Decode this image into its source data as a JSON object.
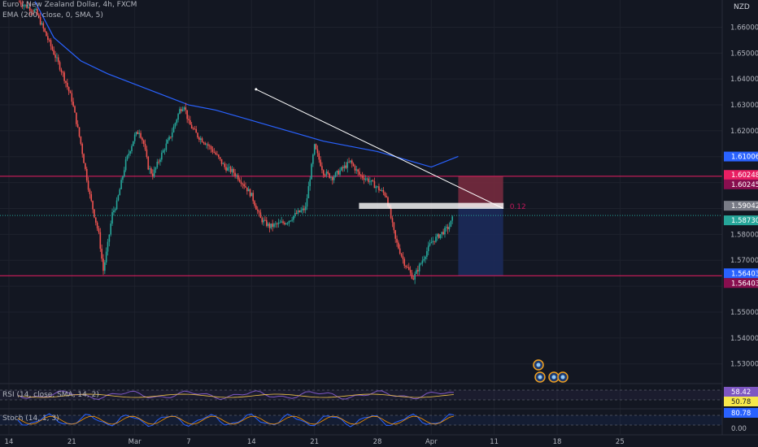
{
  "header": {
    "title": "Euro / New Zealand Dollar, 4h, FXCM",
    "ema_label": "EMA (200, close, 0, SMA, 5)",
    "currency": "NZD"
  },
  "colors": {
    "background": "#131722",
    "up": "#26a69a",
    "down": "#ef5350",
    "ema": "#2962ff",
    "resistance": "#e91e63",
    "trendline": "#ffffff",
    "stop_zone": "#7b2c3f",
    "target_zone": "#1c2a5a"
  },
  "chart_data": {
    "type": "candlestick",
    "symbol": "Euro / New Zealand Dollar",
    "interval": "4h",
    "ylim": [
      1.523,
      1.6705
    ],
    "y_ticks": [
      "1.66000",
      "1.65000",
      "1.64000",
      "1.63000",
      "1.62000",
      "1.61006",
      "1.60248",
      "1.60245",
      "1.59042",
      "1.58730",
      "1.58000",
      "1.57000",
      "1.56403",
      "1.56403",
      "1.55000",
      "1.54000",
      "1.53000"
    ],
    "x_ticks": [
      "14",
      "21",
      "Mar",
      "7",
      "14",
      "21",
      "28",
      "Apr",
      "11",
      "18",
      "25"
    ],
    "price_path": [
      [
        0,
        1.67
      ],
      [
        2,
        1.666
      ],
      [
        3,
        1.658
      ],
      [
        4,
        1.65
      ],
      [
        5,
        1.642
      ],
      [
        6,
        1.632
      ],
      [
        7,
        1.615
      ],
      [
        8,
        1.595
      ],
      [
        9,
        1.58
      ],
      [
        9.5,
        1.566
      ],
      [
        10,
        1.576
      ],
      [
        10.5,
        1.588
      ],
      [
        11,
        1.592
      ],
      [
        12,
        1.608
      ],
      [
        13,
        1.618
      ],
      [
        13.5,
        1.62
      ],
      [
        14,
        1.615
      ],
      [
        14.5,
        1.606
      ],
      [
        15,
        1.603
      ],
      [
        16,
        1.611
      ],
      [
        17,
        1.618
      ],
      [
        18,
        1.628
      ],
      [
        18.5,
        1.63
      ],
      [
        19,
        1.623
      ],
      [
        20,
        1.618
      ],
      [
        21,
        1.615
      ],
      [
        22,
        1.611
      ],
      [
        23,
        1.606
      ],
      [
        24,
        1.604
      ],
      [
        25,
        1.6
      ],
      [
        26,
        1.595
      ],
      [
        27,
        1.586
      ],
      [
        28,
        1.583
      ],
      [
        29,
        1.584
      ],
      [
        30,
        1.585
      ],
      [
        31,
        1.588
      ],
      [
        32,
        1.59
      ],
      [
        33,
        1.614
      ],
      [
        34,
        1.604
      ],
      [
        35,
        1.602
      ],
      [
        36,
        1.605
      ],
      [
        37,
        1.608
      ],
      [
        38,
        1.603
      ],
      [
        39,
        1.601
      ],
      [
        40,
        1.598
      ],
      [
        41,
        1.595
      ],
      [
        42,
        1.578
      ],
      [
        43,
        1.569
      ],
      [
        44,
        1.563
      ],
      [
        45,
        1.57
      ],
      [
        46,
        1.577
      ],
      [
        47,
        1.58
      ],
      [
        48,
        1.583
      ],
      [
        48.5,
        1.5873
      ]
    ],
    "ema_line": [
      [
        1.9,
        1.67
      ],
      [
        4,
        1.656
      ],
      [
        7,
        1.647
      ],
      [
        10,
        1.642
      ],
      [
        13,
        1.638
      ],
      [
        16,
        1.634
      ],
      [
        19,
        1.63
      ],
      [
        22,
        1.628
      ],
      [
        25,
        1.625
      ],
      [
        28,
        1.622
      ],
      [
        31,
        1.619
      ],
      [
        34,
        1.616
      ],
      [
        37,
        1.614
      ],
      [
        40,
        1.612
      ],
      [
        43,
        1.609
      ],
      [
        46,
        1.606
      ],
      [
        49,
        1.6101
      ]
    ],
    "trendline": {
      "from": [
        26.5,
        1.636
      ],
      "to": [
        54,
        1.59
      ]
    },
    "resistance_level": 1.60245,
    "support_level": 1.56403,
    "current_price": 1.5873,
    "supply_box": {
      "from_day": 38,
      "to_day": 54,
      "top": 1.592,
      "bottom": 1.59
    },
    "position": {
      "entry": 1.59042,
      "stop": 1.60248,
      "target": 1.56403,
      "from_day": 49,
      "to_day": 54
    },
    "position_label": "0.12",
    "price_labels": [
      "1.61006",
      "1.60248",
      "1.60245",
      "1.59042",
      "1.58730",
      "1.56403",
      "1.56403"
    ],
    "rsi": {
      "label": "RSI (14, close, SMA, 14, 2)",
      "value": "58.42",
      "ma_value": "50.78"
    },
    "stoch": {
      "label": "Stoch (14, 1, 3)",
      "value": "80.78",
      "zero": "0.00"
    }
  }
}
